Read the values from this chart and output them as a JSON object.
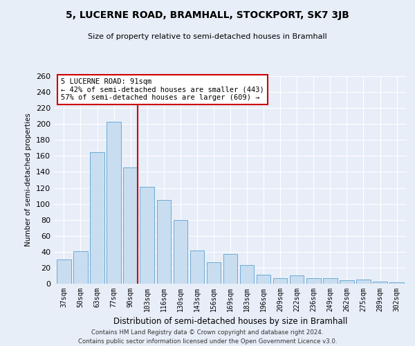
{
  "title": "5, LUCERNE ROAD, BRAMHALL, STOCKPORT, SK7 3JB",
  "subtitle": "Size of property relative to semi-detached houses in Bramhall",
  "xlabel": "Distribution of semi-detached houses by size in Bramhall",
  "ylabel": "Number of semi-detached properties",
  "categories": [
    "37sqm",
    "50sqm",
    "63sqm",
    "77sqm",
    "90sqm",
    "103sqm",
    "116sqm",
    "130sqm",
    "143sqm",
    "156sqm",
    "169sqm",
    "183sqm",
    "196sqm",
    "209sqm",
    "222sqm",
    "236sqm",
    "249sqm",
    "262sqm",
    "275sqm",
    "289sqm",
    "302sqm"
  ],
  "values": [
    30,
    41,
    165,
    203,
    146,
    121,
    105,
    80,
    42,
    27,
    37,
    23,
    11,
    7,
    10,
    7,
    7,
    4,
    5,
    3,
    2
  ],
  "bar_color": "#c9ddf0",
  "bar_edge_color": "#6aaad4",
  "highlight_index": 4,
  "highlight_line_color": "#cc0000",
  "annotation_text": "5 LUCERNE ROAD: 91sqm\n← 42% of semi-detached houses are smaller (443)\n57% of semi-detached houses are larger (609) →",
  "annotation_box_color": "#ffffff",
  "annotation_box_edge_color": "#cc0000",
  "ylim": [
    0,
    260
  ],
  "yticks": [
    0,
    20,
    40,
    60,
    80,
    100,
    120,
    140,
    160,
    180,
    200,
    220,
    240,
    260
  ],
  "background_color": "#e8eef8",
  "fig_background_color": "#e8eef8",
  "grid_color": "#ffffff",
  "footer_line1": "Contains HM Land Registry data © Crown copyright and database right 2024.",
  "footer_line2": "Contains public sector information licensed under the Open Government Licence v3.0."
}
